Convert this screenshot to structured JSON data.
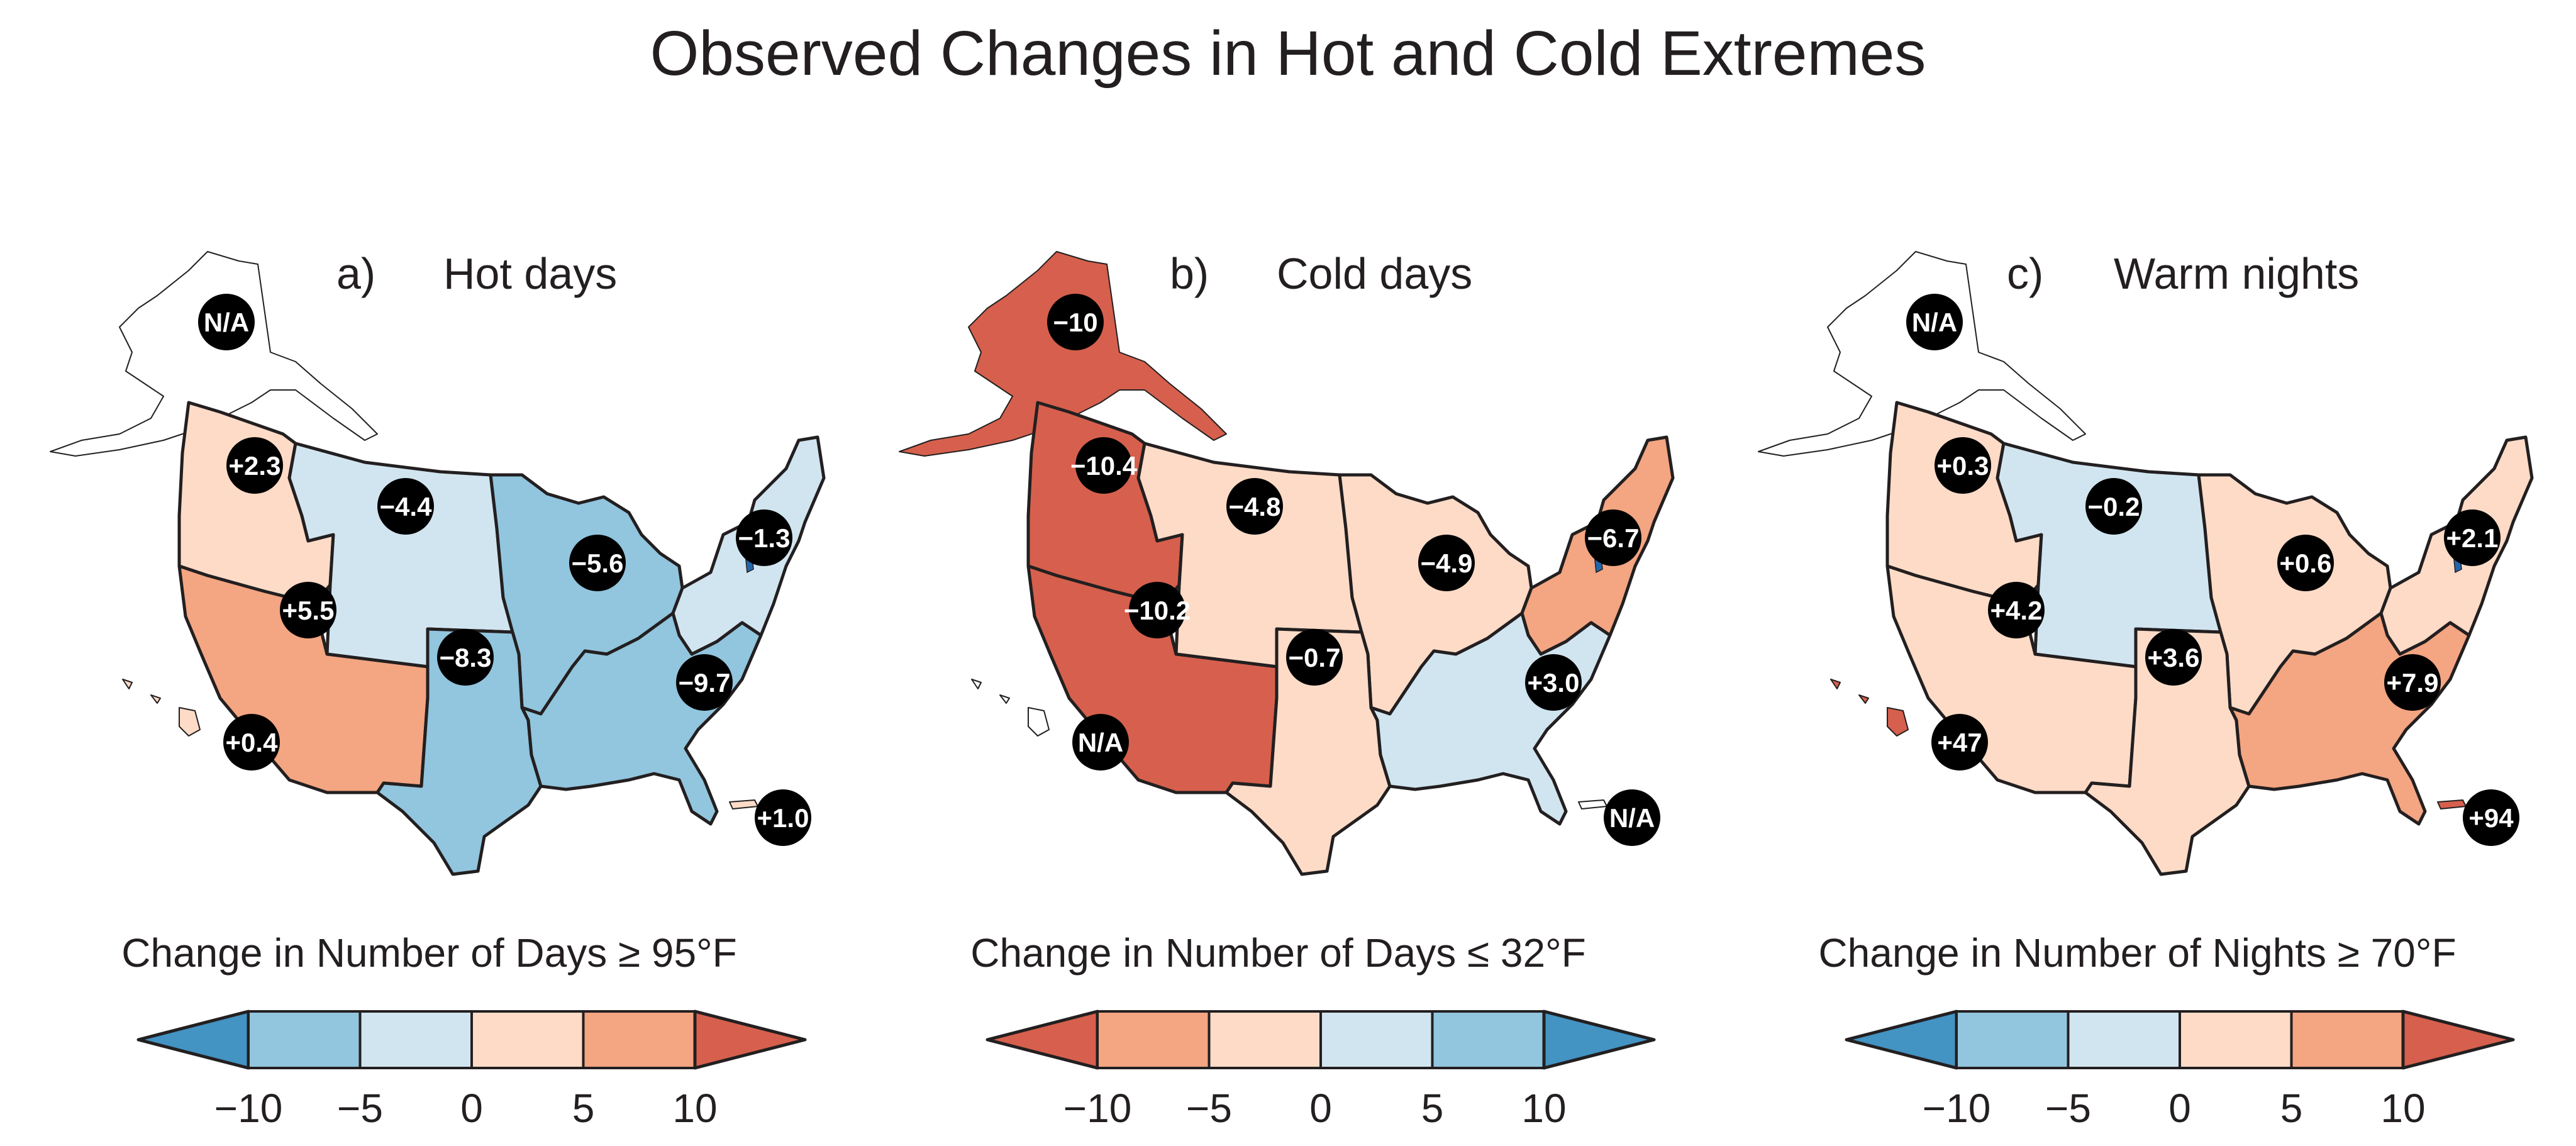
{
  "title": "Observed Changes in Hot and Cold Extremes",
  "chart_data": [
    {
      "type": "heatmap",
      "panel_label": "a)",
      "title": "Hot days",
      "colorbar_title": "Change in Number of Days ≥ 95°F",
      "colorbar_ticks": [
        "−10",
        "−5",
        "0",
        "5",
        "10"
      ],
      "colorbar_range": [
        -10,
        10
      ],
      "colorbar_reversed": false,
      "regions": [
        {
          "name": "Alaska",
          "value": null,
          "label": "N/A"
        },
        {
          "name": "Northwest",
          "value": 2.3,
          "label": "+2.3"
        },
        {
          "name": "Northern Great Plains",
          "value": -4.4,
          "label": "−4.4"
        },
        {
          "name": "Midwest",
          "value": -5.6,
          "label": "−5.6"
        },
        {
          "name": "Northeast",
          "value": -1.3,
          "label": "−1.3"
        },
        {
          "name": "Southwest",
          "value": 5.5,
          "label": "+5.5"
        },
        {
          "name": "Southern Great Plains",
          "value": -8.3,
          "label": "−8.3"
        },
        {
          "name": "Southeast",
          "value": -9.7,
          "label": "−9.7"
        },
        {
          "name": "Hawaii",
          "value": 0.4,
          "label": "+0.4"
        },
        {
          "name": "Puerto Rico",
          "value": 1.0,
          "label": "+1.0"
        }
      ]
    },
    {
      "type": "heatmap",
      "panel_label": "b)",
      "title": "Cold days",
      "colorbar_title": "Change in Number of Days ≤ 32°F",
      "colorbar_ticks": [
        "−10",
        "−5",
        "0",
        "5",
        "10"
      ],
      "colorbar_range": [
        -10,
        10
      ],
      "colorbar_reversed": true,
      "regions": [
        {
          "name": "Alaska",
          "value": -10,
          "label": "−10"
        },
        {
          "name": "Northwest",
          "value": -10.4,
          "label": "−10.4"
        },
        {
          "name": "Northern Great Plains",
          "value": -4.8,
          "label": "−4.8"
        },
        {
          "name": "Midwest",
          "value": -4.9,
          "label": "−4.9"
        },
        {
          "name": "Northeast",
          "value": -6.7,
          "label": "−6.7"
        },
        {
          "name": "Southwest",
          "value": -10.2,
          "label": "−10.2"
        },
        {
          "name": "Southern Great Plains",
          "value": -0.7,
          "label": "−0.7"
        },
        {
          "name": "Southeast",
          "value": 3.0,
          "label": "+3.0"
        },
        {
          "name": "Hawaii",
          "value": null,
          "label": "N/A"
        },
        {
          "name": "Puerto Rico",
          "value": null,
          "label": "N/A"
        }
      ]
    },
    {
      "type": "heatmap",
      "panel_label": "c)",
      "title": "Warm nights",
      "colorbar_title": "Change in Number of Nights ≥ 70°F",
      "colorbar_ticks": [
        "−10",
        "−5",
        "0",
        "5",
        "10"
      ],
      "colorbar_range": [
        -10,
        10
      ],
      "colorbar_reversed": false,
      "regions": [
        {
          "name": "Alaska",
          "value": null,
          "label": "N/A"
        },
        {
          "name": "Northwest",
          "value": 0.3,
          "label": "+0.3"
        },
        {
          "name": "Northern Great Plains",
          "value": -0.2,
          "label": "−0.2"
        },
        {
          "name": "Midwest",
          "value": 0.6,
          "label": "+0.6"
        },
        {
          "name": "Northeast",
          "value": 2.1,
          "label": "+2.1"
        },
        {
          "name": "Southwest",
          "value": 4.2,
          "label": "+4.2"
        },
        {
          "name": "Southern Great Plains",
          "value": 3.6,
          "label": "+3.6"
        },
        {
          "name": "Southeast",
          "value": 7.9,
          "label": "+7.9"
        },
        {
          "name": "Hawaii",
          "value": 47,
          "label": "+47"
        },
        {
          "name": "Puerto Rico",
          "value": 94,
          "label": "+94"
        }
      ]
    }
  ],
  "palette": {
    "blue_ext": "#4393c3",
    "blue_mid": "#92c5de",
    "blue_light": "#d1e5f0",
    "red_light": "#fddbc7",
    "red_mid": "#f4a582",
    "red_ext": "#d6604d",
    "delaware": "#2166ac",
    "nodata": "#ffffff"
  }
}
